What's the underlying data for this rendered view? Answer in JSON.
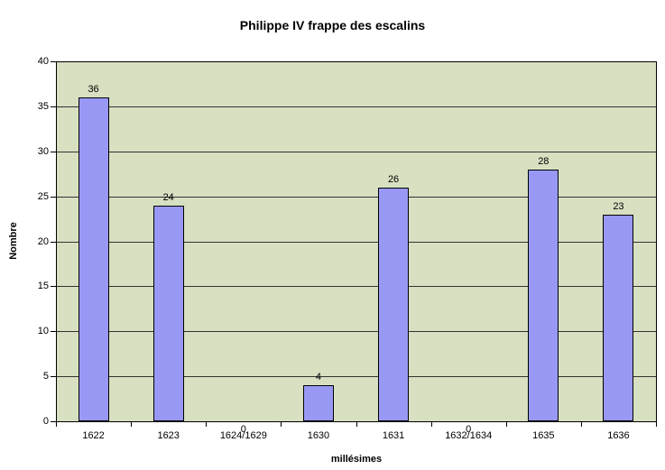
{
  "chart_data": {
    "type": "bar",
    "title": "Philippe IV frappe des escalins",
    "xlabel": "millésimes",
    "ylabel": "Nombre",
    "categories": [
      "1622",
      "1623",
      "1624/1629",
      "1630",
      "1631",
      "1632/1634",
      "1635",
      "1636"
    ],
    "values": [
      36,
      24,
      0,
      4,
      26,
      0,
      28,
      23
    ],
    "value_labels": [
      "36",
      "24",
      "0",
      "4",
      "26",
      "0",
      "28",
      "23"
    ],
    "ytick_labels": [
      "0",
      "5",
      "10",
      "15",
      "20",
      "25",
      "30",
      "35",
      "40"
    ],
    "ylim": [
      0,
      40
    ],
    "ytick_step": 5,
    "grid": true,
    "legend": "none",
    "colors": {
      "bar_fill": "#9999F5",
      "bar_border": "#000000",
      "plot_bg": "#D7E0C1",
      "grid_line": "#333333",
      "axis_line": "#000000",
      "text": "#000000",
      "page_bg": "#FFFFFF"
    }
  }
}
